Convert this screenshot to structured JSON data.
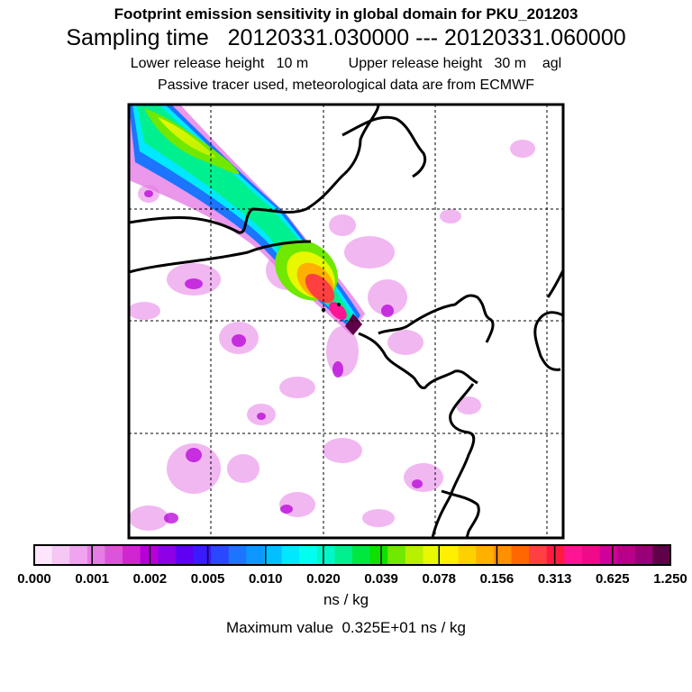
{
  "header": {
    "title": "Footprint emission sensitivity in global domain for PKU_201203",
    "sampling": "Sampling time   20120331.030000 --- 20120331.060000",
    "heights": "Lower release height   10 m          Upper release height   30 m    agl",
    "tracer": "Passive tracer used, meteorological data are from ECMWF"
  },
  "colorbar": {
    "colors": [
      "#fde6fc",
      "#f6c6f5",
      "#f0a4ef",
      "#e67de6",
      "#dc54dc",
      "#cf26cf",
      "#b700d8",
      "#9000e6",
      "#6000f0",
      "#3a1aff",
      "#2a48ff",
      "#1c74ff",
      "#0e98ff",
      "#00c0ff",
      "#00e8ff",
      "#00ffee",
      "#00f8c8",
      "#00f090",
      "#00e840",
      "#10e000",
      "#70e800",
      "#b8f000",
      "#e8f800",
      "#fff000",
      "#ffd000",
      "#ffb000",
      "#ff9000",
      "#ff6800",
      "#ff4040",
      "#ff1a40",
      "#ff1493",
      "#f00a8a",
      "#d0009a",
      "#b8008a",
      "#980078",
      "#600048"
    ],
    "tick_labels": [
      "0.000",
      "0.001",
      "0.002",
      "0.005",
      "0.010",
      "0.020",
      "0.039",
      "0.078",
      "0.156",
      "0.313",
      "0.625",
      "1.250"
    ],
    "units": "ns / kg",
    "max_value": "Maximum value  0.325E+01 ns / kg"
  }
}
